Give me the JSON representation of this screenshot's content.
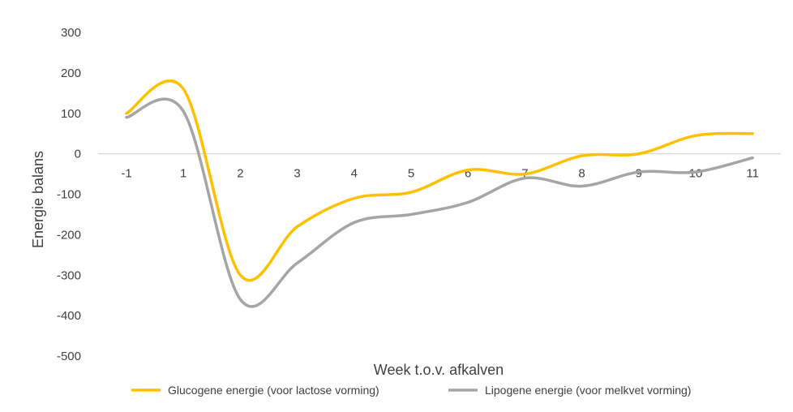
{
  "chart_data": {
    "type": "line",
    "xlabel": "Week t.o.v. afkalven",
    "ylabel": "Energie balans",
    "categories": [
      "-1",
      "1",
      "2",
      "3",
      "4",
      "5",
      "6",
      "7",
      "8",
      "9",
      "10",
      "11"
    ],
    "ylim": [
      -500,
      300
    ],
    "yticks": [
      "300",
      "200",
      "100",
      "0",
      "-100",
      "-200",
      "-300",
      "-400",
      "-500"
    ],
    "grid": false,
    "legend_position": "bottom",
    "series": [
      {
        "name": "Glucogene energie (voor lactose vorming)",
        "color": "#FFC000",
        "values": [
          100,
          160,
          -300,
          -180,
          -110,
          -95,
          -40,
          -50,
          -5,
          0,
          45,
          50
        ]
      },
      {
        "name": "Lipogene energie (voor melkvet vorming)",
        "color": "#A5A5A5",
        "values": [
          90,
          105,
          -360,
          -270,
          -170,
          -150,
          -120,
          -60,
          -80,
          -45,
          -45,
          -10
        ]
      }
    ]
  }
}
